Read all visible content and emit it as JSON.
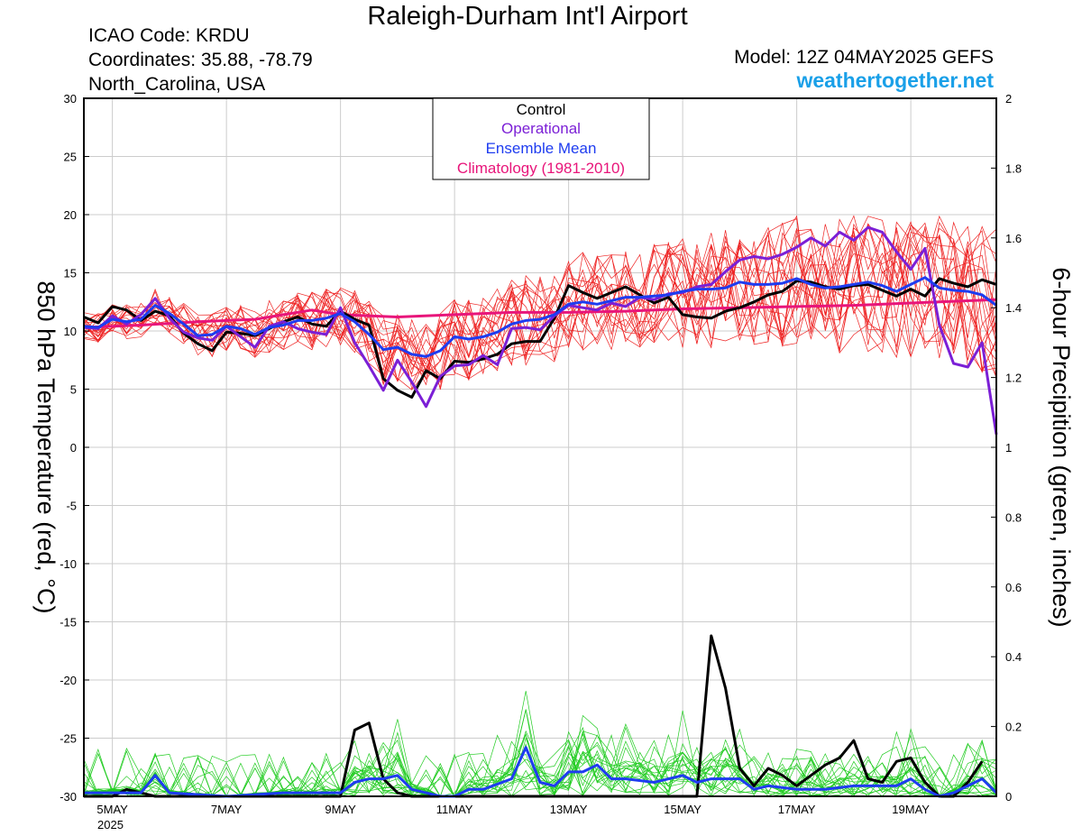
{
  "header": {
    "title": "Raleigh-Durham Int'l Airport",
    "icao": "ICAO Code: KRDU",
    "coordinates": "Coordinates: 35.88, -78.79",
    "region": "North_Carolina, USA",
    "model": "Model: 12Z 04MAY2025 GEFS",
    "site": "weathertogether.net"
  },
  "colors": {
    "control": "#000000",
    "operational": "#7b1fd6",
    "ensemble_mean": "#1e3cf0",
    "climatology": "#e8157a",
    "members_temp": "#ee2222",
    "members_precip": "#22cc22"
  },
  "chart_data": {
    "type": "line",
    "title": "Raleigh-Durham Int'l Airport",
    "ylabel": "850 hPa Temperature (red, °C)",
    "y2label": "6-hour Precipition (green, inches)",
    "ylim": [
      -30,
      30
    ],
    "y2lim": [
      0,
      2
    ],
    "yticks": [
      "30",
      "25",
      "20",
      "15",
      "10",
      "5",
      "0",
      "-5",
      "-10",
      "-15",
      "-20",
      "-25",
      "-30"
    ],
    "y2ticks": [
      "2",
      "1.8",
      "1.6",
      "1.4",
      "1.2",
      "1",
      "0.8",
      "0.6",
      "0.4",
      "0.2",
      "0"
    ],
    "xlim": [
      4.5,
      20.5
    ],
    "xticks": [
      {
        "x": 5,
        "label": "5MAY"
      },
      {
        "x": 7,
        "label": "7MAY"
      },
      {
        "x": 9,
        "label": "9MAY"
      },
      {
        "x": 11,
        "label": "11MAY"
      },
      {
        "x": 13,
        "label": "13MAY"
      },
      {
        "x": 15,
        "label": "15MAY"
      },
      {
        "x": 17,
        "label": "17MAY"
      },
      {
        "x": 19,
        "label": "19MAY"
      }
    ],
    "year_label": "2025",
    "grid": true,
    "legend": {
      "placement": "top-center",
      "entries": [
        "Control",
        "Operational",
        "Ensemble Mean",
        "Climatology (1981-2010)"
      ]
    },
    "series": [
      {
        "name": "Control",
        "axis": "temperature",
        "x": [
          4.5,
          4.75,
          5,
          5.25,
          5.5,
          5.75,
          6,
          6.25,
          6.5,
          6.75,
          7,
          7.25,
          7.5,
          7.75,
          8,
          8.25,
          8.5,
          8.75,
          9,
          9.25,
          9.5,
          9.75,
          10,
          10.25,
          10.5,
          10.75,
          11,
          11.25,
          11.5,
          11.75,
          12,
          12.25,
          12.5,
          12.75,
          13,
          13.25,
          13.5,
          13.75,
          14,
          14.25,
          14.5,
          14.75,
          15,
          15.25,
          15.5,
          15.75,
          16,
          16.25,
          16.5,
          16.75,
          17,
          17.25,
          17.5,
          17.75,
          18,
          18.25,
          18.5,
          18.75,
          19,
          19.25,
          19.5,
          19.75,
          20,
          20.25,
          20.5
        ],
        "y": [
          11.2,
          10.7,
          12.1,
          11.8,
          10.9,
          11.7,
          11.3,
          9.8,
          8.9,
          8.3,
          9.9,
          9.8,
          9.6,
          10.2,
          10.8,
          11.2,
          10.6,
          10.4,
          11.7,
          11.0,
          10.5,
          5.9,
          4.9,
          4.3,
          6.6,
          5.9,
          7.4,
          7.3,
          7.6,
          8.0,
          8.9,
          9.1,
          9.1,
          11.1,
          13.9,
          13.3,
          12.8,
          13.3,
          13.8,
          13.1,
          12.4,
          12.9,
          11.4,
          11.2,
          11.1,
          11.7,
          12.0,
          12.5,
          13.1,
          13.4,
          14.3,
          14.2,
          13.8,
          13.6,
          13.9,
          14.0,
          13.5,
          13.0,
          13.6,
          13.0,
          14.5,
          14.1,
          13.8,
          14.4,
          14.0
        ]
      },
      {
        "name": "Operational",
        "axis": "temperature",
        "x": [
          4.5,
          4.75,
          5,
          5.25,
          5.5,
          5.75,
          6,
          6.25,
          6.5,
          6.75,
          7,
          7.25,
          7.5,
          7.75,
          8,
          8.25,
          8.5,
          8.75,
          9,
          9.25,
          9.5,
          9.75,
          10,
          10.25,
          10.5,
          10.75,
          11,
          11.25,
          11.5,
          11.75,
          12,
          12.25,
          12.5,
          12.75,
          13,
          13.25,
          13.5,
          13.75,
          14,
          14.25,
          14.5,
          14.75,
          15,
          15.25,
          15.5,
          15.75,
          16,
          16.25,
          16.5,
          16.75,
          17,
          17.25,
          17.5,
          17.75,
          18,
          18.25,
          18.5,
          18.75,
          19,
          19.25,
          19.5,
          19.75,
          20,
          20.25,
          20.5
        ],
        "y": [
          10.3,
          10.2,
          11.3,
          10.6,
          11.4,
          12.8,
          11.1,
          9.9,
          9.4,
          9.2,
          10.4,
          9.5,
          8.6,
          10.4,
          10.8,
          10.2,
          9.9,
          9.7,
          12.0,
          9.0,
          7.0,
          4.9,
          7.5,
          5.6,
          3.5,
          6.1,
          7.0,
          7.1,
          7.9,
          7.1,
          10.2,
          10.3,
          10.1,
          11.3,
          12.2,
          12.0,
          11.8,
          12.4,
          12.1,
          12.9,
          12.7,
          13.2,
          13.3,
          13.8,
          14.0,
          15.1,
          16.1,
          16.4,
          16.2,
          16.6,
          17.2,
          18.0,
          17.3,
          18.5,
          17.8,
          18.9,
          18.5,
          16.8,
          15.3,
          17.1,
          10.5,
          7.2,
          6.9,
          9.0,
          1.1
        ]
      },
      {
        "name": "Ensemble Mean",
        "axis": "temperature",
        "x": [
          4.5,
          4.75,
          5,
          5.25,
          5.5,
          5.75,
          6,
          6.25,
          6.5,
          6.75,
          7,
          7.25,
          7.5,
          7.75,
          8,
          8.25,
          8.5,
          8.75,
          9,
          9.25,
          9.5,
          9.75,
          10,
          10.25,
          10.5,
          10.75,
          11,
          11.25,
          11.5,
          11.75,
          12,
          12.25,
          12.5,
          12.75,
          13,
          13.25,
          13.5,
          13.75,
          14,
          14.25,
          14.5,
          14.75,
          15,
          15.25,
          15.5,
          15.75,
          16,
          16.25,
          16.5,
          16.75,
          17,
          17.25,
          17.5,
          17.75,
          18,
          18.25,
          18.5,
          18.75,
          19,
          19.25,
          19.5,
          19.75,
          20,
          20.25,
          20.5
        ],
        "y": [
          10.4,
          10.3,
          11.0,
          10.8,
          11.0,
          12.2,
          11.5,
          10.6,
          9.6,
          9.7,
          10.4,
          10.2,
          9.7,
          10.3,
          10.5,
          10.9,
          10.9,
          11.1,
          11.5,
          10.8,
          9.7,
          8.4,
          8.6,
          8.0,
          7.8,
          8.3,
          9.5,
          9.3,
          9.5,
          9.9,
          10.6,
          10.9,
          11.0,
          11.4,
          12.3,
          12.5,
          12.3,
          12.6,
          12.9,
          12.9,
          13.0,
          13.1,
          13.4,
          13.6,
          13.6,
          13.7,
          14.2,
          14.0,
          14.0,
          14.1,
          14.5,
          14.0,
          13.7,
          13.8,
          14.0,
          14.2,
          13.9,
          13.4,
          14.0,
          14.6,
          13.7,
          13.5,
          13.4,
          13.1,
          12.2
        ]
      },
      {
        "name": "Climatology (1981-2010)",
        "axis": "temperature",
        "x": [
          4.5,
          5.5,
          6.5,
          7.5,
          8,
          8.5,
          9,
          10,
          11,
          12,
          13,
          14,
          15,
          16,
          17,
          18,
          19,
          20,
          20.5
        ],
        "y": [
          10.3,
          10.5,
          10.8,
          11.0,
          11.4,
          11.8,
          11.4,
          11.2,
          11.4,
          11.6,
          11.6,
          11.7,
          11.9,
          12.0,
          12.1,
          12.2,
          12.4,
          12.6,
          12.7
        ]
      },
      {
        "name": "Control",
        "axis": "precipitation",
        "x": [
          4.5,
          5,
          5.25,
          5.5,
          5.75,
          6,
          8,
          9,
          9.25,
          9.5,
          9.75,
          10,
          10.25,
          10.5,
          10.75,
          11,
          12,
          14,
          15,
          15.25,
          15.5,
          15.75,
          16,
          16.25,
          16.5,
          16.75,
          17,
          17.25,
          17.5,
          17.75,
          18,
          18.25,
          18.5,
          18.75,
          19,
          19.25,
          19.5,
          19.75,
          20,
          20.25
        ],
        "y": [
          0,
          0,
          0.02,
          0.01,
          0,
          0,
          0,
          0,
          0.19,
          0.21,
          0.05,
          0.01,
          0,
          0,
          0,
          0,
          0,
          0,
          0,
          0,
          0.46,
          0.31,
          0.08,
          0.03,
          0.08,
          0.06,
          0.03,
          0.06,
          0.09,
          0.11,
          0.16,
          0.05,
          0.04,
          0.1,
          0.11,
          0.04,
          0,
          0,
          0.04,
          0.1
        ]
      },
      {
        "name": "Ensemble Mean",
        "axis": "precipitation",
        "x": [
          4.5,
          5,
          5.25,
          5.5,
          5.75,
          6,
          7,
          8,
          9,
          9.25,
          9.5,
          9.75,
          10,
          10.25,
          10.5,
          10.75,
          11,
          11.25,
          11.5,
          12,
          12.25,
          12.5,
          12.75,
          13,
          13.25,
          13.5,
          13.75,
          14,
          14.5,
          15,
          15.25,
          15.5,
          15.75,
          16,
          16.25,
          16.5,
          17,
          17.5,
          18,
          18.5,
          18.75,
          19,
          19.25,
          19.5,
          19.75,
          20,
          20.25,
          20.5
        ],
        "y": [
          0.01,
          0.01,
          0.01,
          0.01,
          0.06,
          0.01,
          0,
          0.01,
          0.01,
          0.04,
          0.05,
          0.05,
          0.06,
          0.02,
          0.01,
          0,
          0,
          0.02,
          0.02,
          0.05,
          0.14,
          0.04,
          0.03,
          0.07,
          0.07,
          0.09,
          0.05,
          0.05,
          0.04,
          0.06,
          0.04,
          0.05,
          0.05,
          0.05,
          0.02,
          0.03,
          0.02,
          0.02,
          0.03,
          0.03,
          0.03,
          0.05,
          0.02,
          0,
          0.01,
          0.03,
          0.05,
          0.01
        ]
      }
    ],
    "member_spread": {
      "temperature": {
        "name": "Ensemble members (850 hPa temperature)",
        "count": 20
      },
      "precipitation": {
        "name": "Ensemble members (6-hour precipitation)",
        "count": 20
      }
    }
  }
}
